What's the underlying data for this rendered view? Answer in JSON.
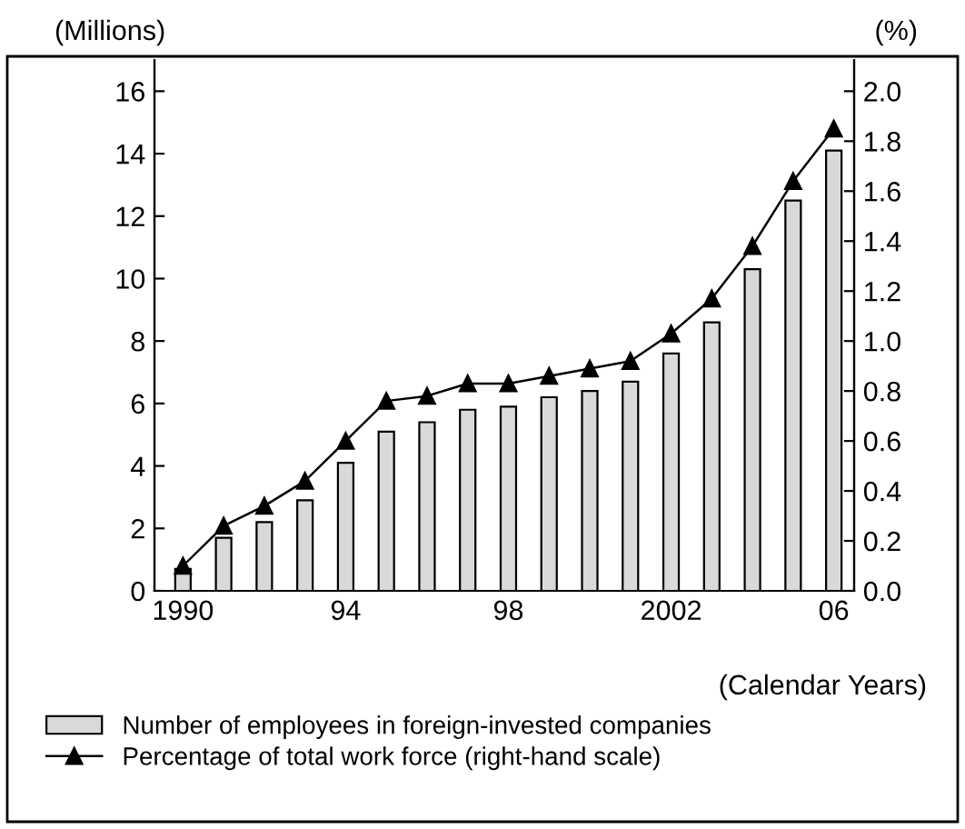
{
  "chart_data": {
    "type": "bar",
    "categories": [
      "1990",
      null,
      null,
      null,
      "94",
      null,
      null,
      null,
      "98",
      null,
      null,
      null,
      "2002",
      null,
      null,
      null,
      "06"
    ],
    "xlabel": "(Calendar Years)",
    "ylabel": "(Millions)",
    "y2label": "(%)",
    "series": [
      {
        "name": "Number of employees in foreign-invested companies",
        "color": "#d9d9d9",
        "values": [
          0.7,
          1.7,
          2.2,
          2.9,
          4.1,
          5.1,
          5.4,
          5.8,
          5.9,
          6.2,
          6.4,
          6.7,
          7.6,
          8.6,
          10.3,
          12.5,
          14.1
        ]
      },
      {
        "name": "Percentage of total work force (right-hand scale)",
        "type": "line",
        "axis": "y2",
        "color": "#000000",
        "marker": "triangle",
        "values": [
          0.1,
          0.26,
          0.34,
          0.44,
          0.6,
          0.76,
          0.78,
          0.83,
          0.83,
          0.86,
          0.89,
          0.92,
          1.03,
          1.17,
          1.38,
          1.64,
          1.85
        ]
      }
    ],
    "ylim": [
      0,
      17
    ],
    "yticks": [
      0,
      2,
      4,
      6,
      8,
      10,
      12,
      14,
      16
    ],
    "y2lim": [
      0,
      2.125
    ],
    "y2ticks": [
      {
        "value": 0,
        "label": "0.0"
      },
      0.2,
      0.4,
      0.6,
      0.8,
      {
        "value": 1,
        "label": "1.0"
      },
      1.2,
      1.4,
      1.6,
      1.8,
      {
        "value": 2,
        "label": "2.0"
      }
    ],
    "grid": false,
    "legend": "bottom"
  }
}
